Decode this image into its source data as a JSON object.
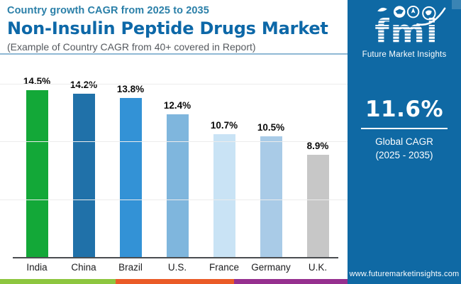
{
  "header": {
    "eyebrow": "Country growth CAGR from 2025 to 2035",
    "title": "Non-Insulin Peptide Drugs Market",
    "subtitle": "(Example of Country CAGR from 40+ covered in Report)"
  },
  "chart_data": {
    "type": "bar",
    "title": "Non-Insulin Peptide Drugs Market — Country growth CAGR from 2025 to 2035",
    "categories": [
      "India",
      "China",
      "Brazil",
      "U.S.",
      "France",
      "Germany",
      "U.K."
    ],
    "values": [
      14.5,
      14.2,
      13.8,
      12.4,
      10.7,
      10.5,
      8.9
    ],
    "value_labels": [
      "14.5%",
      "14.2%",
      "13.8%",
      "12.4%",
      "10.7%",
      "10.5%",
      "8.9%"
    ],
    "bar_colors": [
      "#13a838",
      "#2071a9",
      "#3392d6",
      "#7fb6dd",
      "#c9e3f5",
      "#a9cbe7",
      "#c7c7c7"
    ],
    "xlabel": "",
    "ylabel": "",
    "ylim": [
      0,
      16.5
    ],
    "gridline_values": [
      5,
      10,
      15
    ],
    "grid": true,
    "legend": false,
    "y_axis_visible": false
  },
  "sidebar": {
    "logo_text": "fmi",
    "tagline": "Future Market Insights",
    "stat_value": "11.6%",
    "stat_label_1": "Global CAGR",
    "stat_label_2": "(2025 - 2035)",
    "website": "www.futuremarketinsights.com",
    "bg_color": "#0f69a4"
  },
  "footer": {
    "stripe_colors": [
      "#8dc63f",
      "#ea5b27",
      "#96308f"
    ]
  }
}
